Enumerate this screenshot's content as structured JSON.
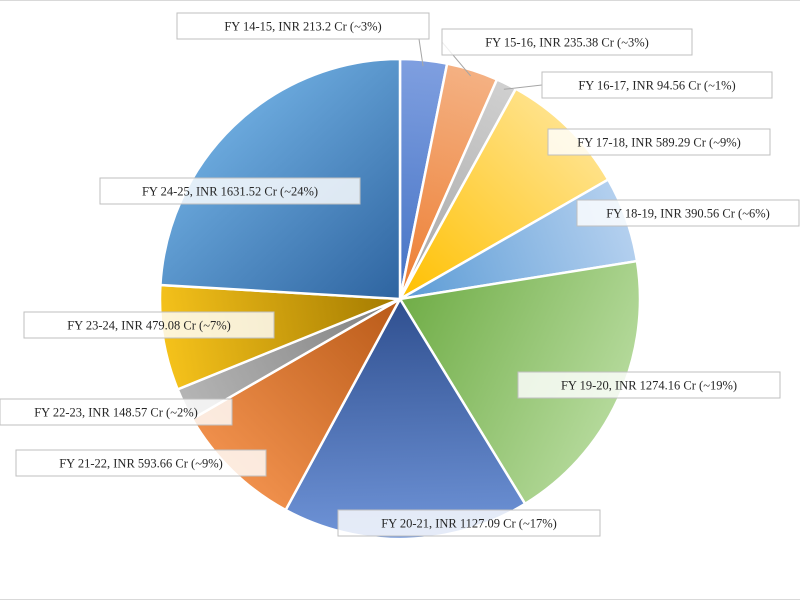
{
  "chart_data": {
    "type": "pie",
    "title": "",
    "slices": [
      {
        "label": "FY 14-15, INR 213.2 Cr (~3%)",
        "value": 213.2,
        "color": "#4472c4",
        "gradient_end": "#7f9fe0"
      },
      {
        "label": "FY 15-16, INR 235.38 Cr (~3%)",
        "value": 235.38,
        "color": "#ed7d31",
        "gradient_end": "#f4b183"
      },
      {
        "label": "FY 16-17, INR 94.56 Cr (~1%)",
        "value": 94.56,
        "color": "#a5a5a5",
        "gradient_end": "#d0d0d0"
      },
      {
        "label": "FY 17-18, INR 589.29 Cr (~9%)",
        "value": 589.29,
        "color": "#ffc000",
        "gradient_end": "#ffe28a"
      },
      {
        "label": "FY 18-19, INR 390.56 Cr (~6%)",
        "value": 390.56,
        "color": "#5b9bd5",
        "gradient_end": "#b4d0ef"
      },
      {
        "label": "FY 19-20, INR 1274.16 Cr (~19%)",
        "value": 1274.16,
        "color": "#70ad47",
        "gradient_end": "#b4d99a"
      },
      {
        "label": "FY 20-21, INR 1127.09 Cr (~17%)",
        "value": 1127.09,
        "color": "#2f4f8f",
        "gradient_end": "#6f94d8"
      },
      {
        "label": "FY 21-22, INR 593.66 Cr (~9%)",
        "value": 593.66,
        "color": "#b95a18",
        "gradient_end": "#f0904c"
      },
      {
        "label": "FY 22-23, INR 148.57 Cr (~2%)",
        "value": 148.57,
        "color": "#7f7f7f",
        "gradient_end": "#b5b5b5"
      },
      {
        "label": "FY 23-24, INR 479.08 Cr (~7%)",
        "value": 479.08,
        "color": "#a37a00",
        "gradient_end": "#f5c21b"
      },
      {
        "label": "FY 24-25, INR 1631.52 Cr (~24%)",
        "value": 1631.52,
        "color": "#2e64a0",
        "gradient_end": "#6aa8dc"
      }
    ]
  }
}
